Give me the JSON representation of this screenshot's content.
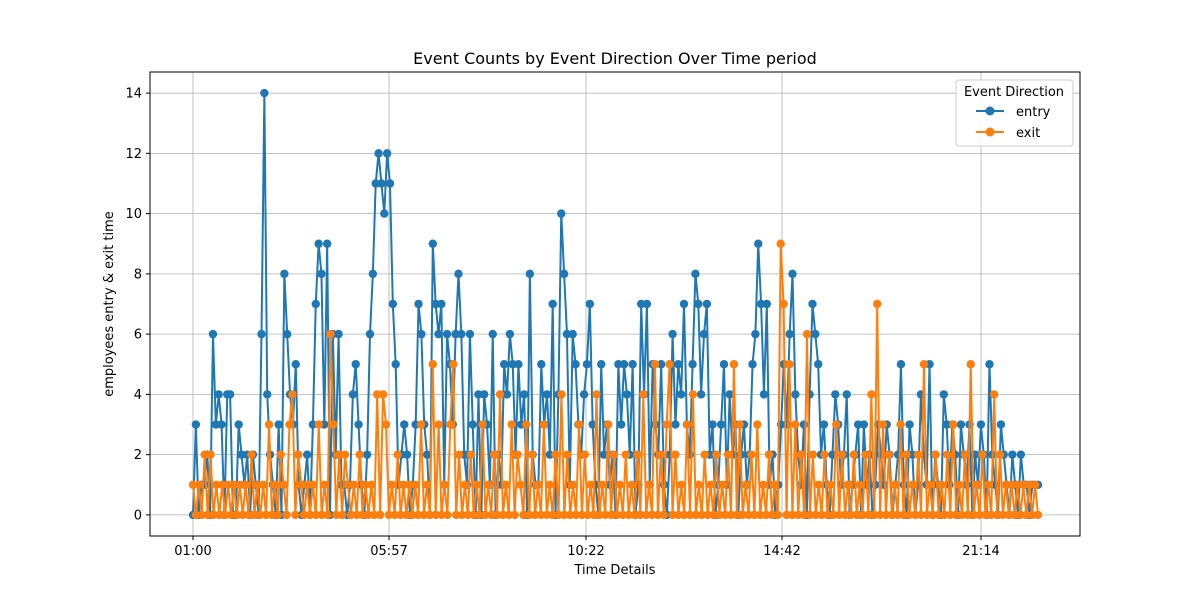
{
  "chart_data": {
    "type": "line",
    "title": "Event Counts by Event Direction Over Time period",
    "xlabel": "Time Details",
    "ylabel": "employees entry & exit time",
    "x_ticks": [
      "01:00",
      "05:57",
      "10:22",
      "14:42",
      "21:14"
    ],
    "y_ticks": [
      0,
      2,
      4,
      6,
      8,
      10,
      12,
      14
    ],
    "ylim": [
      -0.7,
      14.7
    ],
    "grid": true,
    "legend": {
      "title": "Event Direction",
      "placement": "top-right"
    },
    "series": [
      {
        "name": "entry",
        "color": "#1f77b4",
        "values": [
          0,
          3,
          0,
          1,
          1,
          2,
          0,
          6,
          3,
          4,
          3,
          0,
          4,
          4,
          0,
          0,
          3,
          2,
          1,
          2,
          0,
          2,
          1,
          0,
          6,
          14,
          4,
          2,
          1,
          0,
          3,
          0,
          8,
          6,
          4,
          3,
          5,
          1,
          0,
          1,
          2,
          0,
          3,
          7,
          9,
          8,
          3,
          9,
          0,
          6,
          2,
          6,
          1,
          1,
          0,
          1,
          4,
          5,
          3,
          1,
          0,
          2,
          6,
          8,
          11,
          12,
          11,
          10,
          12,
          11,
          7,
          5,
          1,
          2,
          3,
          2,
          0,
          1,
          3,
          7,
          6,
          3,
          2,
          0,
          9,
          7,
          6,
          7,
          1,
          6,
          5,
          3,
          6,
          8,
          6,
          2,
          1,
          6,
          3,
          0,
          4,
          0,
          4,
          3,
          1,
          6,
          0,
          2,
          1,
          5,
          4,
          6,
          5,
          2,
          5,
          3,
          4,
          0,
          8,
          2,
          1,
          1,
          5,
          3,
          4,
          2,
          7,
          0,
          4,
          10,
          8,
          6,
          1,
          6,
          5,
          3,
          2,
          4,
          5,
          7,
          3,
          1,
          0,
          5,
          2,
          3,
          1,
          2,
          0,
          5,
          3,
          5,
          4,
          2,
          5,
          0,
          1,
          7,
          4,
          7,
          1,
          5,
          3,
          2,
          5,
          1,
          0,
          2,
          6,
          3,
          5,
          4,
          7,
          3,
          2,
          5,
          8,
          7,
          4,
          6,
          7,
          2,
          3,
          0,
          1,
          3,
          5,
          1,
          4,
          2,
          3,
          0,
          2,
          3,
          1,
          2,
          5,
          6,
          9,
          7,
          4,
          7,
          1,
          2,
          0,
          1,
          3,
          5,
          3,
          6,
          8,
          4,
          2,
          1,
          3,
          0,
          4,
          7,
          6,
          5,
          2,
          3,
          1,
          0,
          2,
          4,
          3,
          1,
          2,
          4,
          0,
          1,
          2,
          3,
          0,
          3,
          1,
          2,
          0,
          1,
          3,
          2,
          1,
          3,
          2,
          0,
          1,
          2,
          5,
          1,
          0,
          3,
          2,
          0,
          1,
          4,
          2,
          1,
          5,
          0,
          2,
          1,
          0,
          4,
          3,
          1,
          3,
          2,
          0,
          3,
          2,
          1,
          3,
          0,
          2,
          1,
          3,
          2,
          0,
          5,
          2,
          1,
          0,
          3,
          2,
          1,
          0,
          2,
          1,
          0,
          2,
          1,
          1,
          0,
          1,
          1,
          1
        ]
      },
      {
        "name": "exit",
        "color": "#ff7f0e",
        "values": [
          1,
          0,
          1,
          0,
          2,
          0,
          2,
          0,
          1,
          0,
          1,
          0,
          1,
          0,
          1,
          0,
          1,
          0,
          1,
          0,
          2,
          0,
          1,
          0,
          1,
          0,
          3,
          0,
          1,
          0,
          2,
          1,
          0,
          3,
          4,
          0,
          2,
          1,
          0,
          1,
          0,
          1,
          0,
          3,
          0,
          1,
          0,
          6,
          3,
          0,
          2,
          0,
          2,
          1,
          0,
          1,
          0,
          2,
          0,
          1,
          0,
          1,
          0,
          4,
          0,
          4,
          3,
          0,
          1,
          0,
          2,
          0,
          1,
          0,
          1,
          0,
          1,
          0,
          3,
          0,
          1,
          0,
          5,
          0,
          3,
          0,
          1,
          0,
          3,
          5,
          0,
          2,
          0,
          1,
          0,
          2,
          0,
          1,
          0,
          3,
          0,
          1,
          0,
          2,
          0,
          4,
          0,
          1,
          0,
          3,
          0,
          2,
          1,
          0,
          3,
          0,
          2,
          0,
          1,
          0,
          3,
          0,
          1,
          0,
          2,
          0,
          4,
          0,
          2,
          0,
          1,
          0,
          3,
          0,
          2,
          0,
          1,
          0,
          4,
          0,
          1,
          0,
          3,
          0,
          2,
          0,
          1,
          0,
          2,
          0,
          1,
          0,
          2,
          0,
          4,
          0,
          1,
          0,
          5,
          0,
          2,
          0,
          3,
          5,
          0,
          2,
          0,
          1,
          0,
          3,
          0,
          4,
          0,
          1,
          0,
          2,
          0,
          1,
          0,
          2,
          0,
          1,
          0,
          2,
          0,
          5,
          0,
          3,
          0,
          1,
          0,
          2,
          0,
          3,
          0,
          1,
          0,
          2,
          0,
          1,
          0,
          9,
          7,
          0,
          5,
          0,
          3,
          0,
          2,
          0,
          6,
          0,
          2,
          0,
          1,
          0,
          2,
          0,
          1,
          0,
          3,
          0,
          2,
          0,
          1,
          0,
          2,
          0,
          1,
          0,
          2,
          0,
          4,
          0,
          7,
          0,
          3,
          0,
          2,
          0,
          1,
          0,
          3,
          0,
          2,
          0,
          1,
          0,
          2,
          0,
          5,
          0,
          1,
          0,
          2,
          0,
          1,
          0,
          2,
          0,
          3,
          0,
          1,
          0,
          2,
          0,
          5,
          0,
          1,
          0,
          2,
          0,
          1,
          0,
          4,
          0,
          2,
          0,
          1,
          0,
          1,
          0,
          1,
          0,
          1,
          0,
          1,
          0,
          1,
          0
        ]
      }
    ]
  }
}
